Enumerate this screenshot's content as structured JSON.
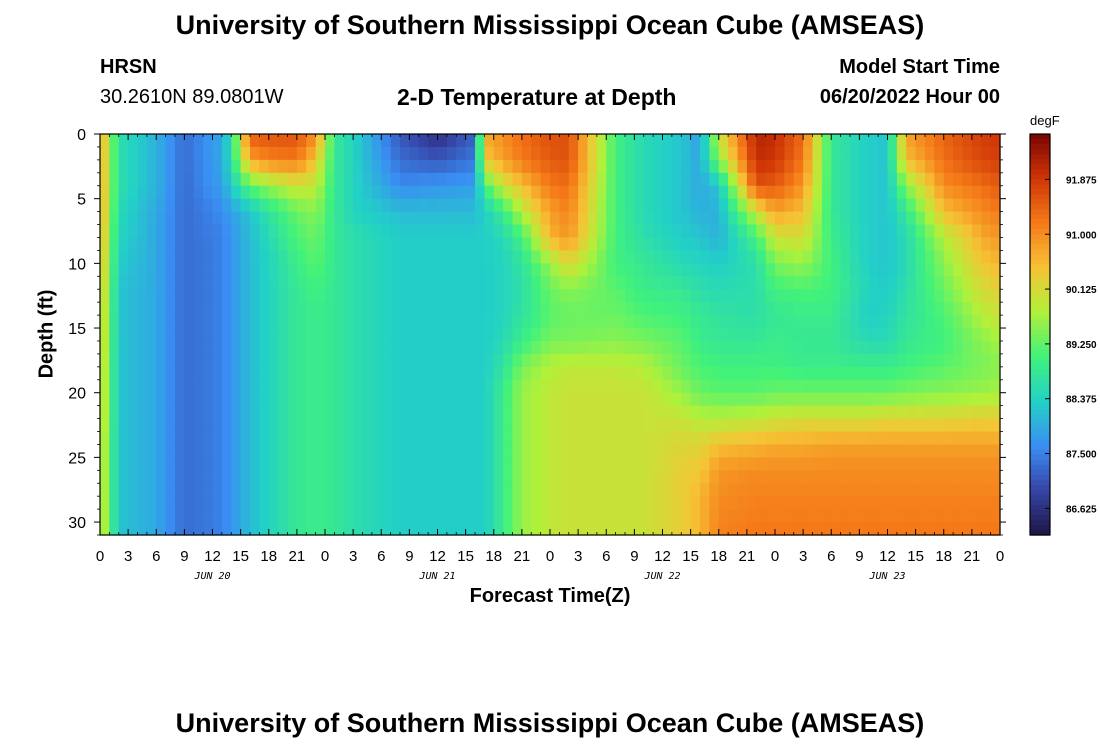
{
  "header": {
    "title": "University of Southern Mississippi Ocean Cube (AMSEAS)",
    "station": "HRSN",
    "coords": "30.2610N  89.0801W",
    "plot_title": "2-D Temperature at Depth",
    "model_label": "Model Start Time",
    "model_time": "06/20/2022 Hour 00"
  },
  "footer": {
    "title": "University of Southern Mississippi Ocean Cube (AMSEAS)"
  },
  "chart_data": {
    "type": "heatmap",
    "title": "2-D Temperature at Depth",
    "xlabel": "Forecast Time(Z)",
    "ylabel": "Depth (ft)",
    "xlim": [
      0,
      96
    ],
    "ylim": [
      0,
      31
    ],
    "x_ticks": [
      "0",
      "3",
      "6",
      "9",
      "12",
      "15",
      "18",
      "21",
      "0",
      "3",
      "6",
      "9",
      "12",
      "15",
      "18",
      "21",
      "0",
      "3",
      "6",
      "9",
      "12",
      "15",
      "18",
      "21",
      "0",
      "3",
      "6",
      "9",
      "12",
      "15",
      "18",
      "21",
      "0"
    ],
    "date_labels": [
      "JUN 20",
      "JUN 21",
      "JUN 22",
      "JUN 23"
    ],
    "y_ticks": [
      "0",
      "5",
      "10",
      "15",
      "20",
      "25",
      "30"
    ],
    "colorbar": {
      "unit": "degF",
      "ticks": [
        "91.875",
        "91.000",
        "90.125",
        "89.250",
        "88.375",
        "87.500",
        "86.625"
      ],
      "range": [
        86.2,
        92.6
      ],
      "colors": [
        "#1d1646",
        "#3644a5",
        "#3a8ef4",
        "#22d1c6",
        "#42f27a",
        "#b0f13a",
        "#f6c335",
        "#f57a19",
        "#cf3506",
        "#7a0403"
      ]
    },
    "depths_ft": [
      0,
      2,
      4,
      6,
      8,
      10,
      12,
      14,
      16,
      18,
      20,
      22,
      24,
      26,
      28,
      31
    ],
    "keyframes_hours": [
      0,
      2,
      6,
      9,
      13,
      14,
      16,
      18,
      21,
      23,
      25,
      27,
      32,
      36,
      40,
      41,
      43,
      45,
      48,
      50,
      55,
      58,
      62,
      64,
      66,
      70,
      72,
      75,
      78,
      82,
      84,
      86,
      90,
      94,
      96
    ],
    "profiles_degF": [
      [
        90.8,
        90.8,
        90.8,
        90.8,
        90.7,
        90.6,
        90.5,
        90.4,
        90.4,
        90.3,
        90.3,
        90.3,
        90.2,
        90.2,
        90.2,
        90.2
      ],
      [
        88.6,
        88.6,
        88.6,
        88.5,
        88.4,
        88.3,
        88.2,
        88.2,
        88.2,
        88.2,
        88.2,
        88.2,
        88.2,
        88.2,
        88.2,
        88.2
      ],
      [
        88.0,
        88.0,
        88.0,
        87.9,
        87.9,
        87.9,
        87.9,
        87.9,
        87.9,
        87.9,
        87.9,
        87.9,
        87.9,
        87.9,
        87.9,
        87.9
      ],
      [
        87.3,
        87.3,
        87.3,
        87.3,
        87.3,
        87.3,
        87.3,
        87.3,
        87.3,
        87.3,
        87.3,
        87.3,
        87.3,
        87.3,
        87.3,
        87.3
      ],
      [
        87.9,
        87.9,
        87.8,
        87.6,
        87.5,
        87.5,
        87.5,
        87.5,
        87.5,
        87.5,
        87.5,
        87.5,
        87.5,
        87.5,
        87.5,
        87.5
      ],
      [
        88.6,
        88.6,
        88.3,
        87.8,
        87.7,
        87.7,
        87.7,
        87.7,
        87.7,
        87.7,
        87.7,
        87.7,
        87.7,
        87.7,
        87.7,
        87.7
      ],
      [
        91.5,
        90.8,
        89.2,
        88.2,
        88.1,
        88.1,
        88.1,
        88.1,
        88.1,
        88.1,
        88.1,
        88.1,
        88.1,
        88.1,
        88.1,
        88.1
      ],
      [
        91.6,
        91.1,
        89.6,
        88.7,
        88.5,
        88.4,
        88.4,
        88.4,
        88.4,
        88.4,
        88.4,
        88.4,
        88.4,
        88.4,
        88.4,
        88.4
      ],
      [
        91.6,
        91.2,
        90.0,
        89.3,
        89.1,
        88.9,
        88.8,
        88.8,
        88.8,
        88.8,
        88.8,
        88.8,
        88.8,
        88.8,
        88.8,
        88.8
      ],
      [
        91.0,
        90.4,
        89.9,
        89.5,
        89.3,
        89.2,
        89.0,
        88.9,
        88.9,
        88.9,
        88.9,
        88.9,
        88.9,
        88.9,
        88.9,
        88.9
      ],
      [
        88.8,
        88.8,
        88.8,
        88.8,
        88.8,
        88.8,
        88.8,
        88.8,
        88.8,
        88.8,
        88.8,
        88.8,
        88.8,
        88.8,
        88.8,
        88.8
      ],
      [
        88.4,
        88.4,
        88.4,
        88.4,
        88.6,
        88.6,
        88.6,
        88.6,
        88.6,
        88.6,
        88.6,
        88.6,
        88.6,
        88.6,
        88.6,
        88.6
      ],
      [
        87.1,
        87.3,
        87.6,
        88.1,
        88.3,
        88.3,
        88.3,
        88.3,
        88.3,
        88.3,
        88.3,
        88.3,
        88.3,
        88.3,
        88.3,
        88.3
      ],
      [
        86.6,
        87.1,
        87.7,
        88.1,
        88.3,
        88.3,
        88.3,
        88.3,
        88.3,
        88.3,
        88.3,
        88.3,
        88.3,
        88.3,
        88.3,
        88.3
      ],
      [
        87.2,
        87.4,
        87.8,
        88.1,
        88.3,
        88.3,
        88.3,
        88.3,
        88.3,
        88.3,
        88.3,
        88.3,
        88.3,
        88.3,
        88.3,
        88.3
      ],
      [
        90.7,
        90.4,
        89.0,
        88.3,
        88.3,
        88.3,
        88.3,
        88.3,
        88.3,
        88.3,
        88.3,
        88.3,
        88.3,
        88.3,
        88.3,
        88.3
      ],
      [
        91.0,
        90.8,
        90.0,
        88.9,
        88.5,
        88.4,
        88.4,
        88.4,
        88.5,
        88.7,
        88.9,
        88.9,
        88.9,
        88.9,
        88.9,
        88.9
      ],
      [
        91.3,
        91.2,
        90.5,
        89.8,
        89.0,
        88.7,
        88.6,
        88.7,
        88.9,
        89.4,
        89.6,
        89.6,
        89.6,
        89.6,
        89.6,
        89.6
      ],
      [
        91.6,
        91.5,
        91.2,
        90.8,
        90.6,
        89.6,
        89.3,
        89.2,
        89.4,
        89.8,
        89.9,
        89.9,
        89.9,
        89.9,
        89.9,
        89.9
      ],
      [
        91.6,
        91.6,
        91.3,
        91.1,
        90.9,
        90.2,
        89.5,
        89.3,
        89.4,
        89.9,
        90.0,
        90.0,
        90.0,
        90.0,
        90.0,
        90.0
      ],
      [
        89.0,
        89.0,
        89.0,
        89.0,
        89.0,
        89.0,
        89.2,
        89.3,
        89.5,
        89.9,
        90.0,
        90.0,
        90.0,
        90.0,
        90.0,
        90.0
      ],
      [
        88.5,
        88.5,
        88.5,
        88.5,
        88.6,
        88.8,
        88.9,
        89.1,
        89.4,
        89.8,
        90.0,
        90.0,
        90.0,
        90.0,
        90.0,
        90.0
      ],
      [
        88.2,
        88.2,
        88.2,
        88.2,
        88.3,
        88.5,
        88.8,
        89.0,
        89.2,
        89.3,
        89.6,
        90.0,
        90.2,
        90.3,
        90.3,
        90.3
      ],
      [
        87.8,
        87.9,
        87.9,
        88.0,
        88.2,
        88.4,
        88.6,
        88.8,
        88.9,
        89.1,
        89.3,
        89.8,
        90.2,
        90.4,
        90.6,
        90.6
      ],
      [
        90.0,
        89.5,
        88.2,
        88.0,
        88.0,
        88.3,
        88.5,
        88.7,
        88.8,
        89.0,
        89.2,
        89.8,
        90.5,
        90.9,
        91.0,
        91.1
      ],
      [
        92.1,
        92.0,
        91.6,
        90.0,
        89.0,
        88.6,
        88.6,
        88.6,
        88.8,
        89.0,
        89.2,
        89.9,
        90.6,
        91.0,
        91.1,
        91.2
      ],
      [
        92.0,
        91.9,
        91.5,
        90.8,
        90.0,
        89.4,
        89.0,
        88.8,
        88.9,
        89.0,
        89.3,
        90.0,
        90.7,
        91.0,
        91.1,
        91.2
      ],
      [
        91.3,
        91.2,
        90.9,
        90.5,
        90.1,
        89.6,
        89.1,
        88.9,
        88.8,
        88.9,
        89.3,
        90.1,
        90.7,
        91.0,
        91.1,
        91.2
      ],
      [
        88.8,
        88.8,
        88.8,
        88.8,
        88.9,
        89.0,
        89.0,
        88.9,
        88.8,
        88.9,
        89.3,
        90.1,
        90.8,
        91.0,
        91.1,
        91.2
      ],
      [
        88.3,
        88.3,
        88.3,
        88.3,
        88.3,
        88.3,
        88.4,
        88.3,
        88.5,
        88.9,
        89.3,
        90.1,
        90.8,
        91.0,
        91.1,
        91.2
      ],
      [
        88.2,
        88.2,
        88.2,
        88.2,
        88.2,
        88.2,
        88.3,
        88.4,
        88.5,
        88.9,
        89.3,
        90.2,
        90.8,
        91.0,
        91.1,
        91.2
      ],
      [
        90.8,
        90.5,
        89.5,
        88.8,
        88.5,
        88.5,
        88.6,
        88.7,
        88.8,
        89.0,
        89.4,
        90.2,
        90.8,
        91.0,
        91.1,
        91.2
      ],
      [
        91.4,
        91.3,
        91.0,
        90.5,
        89.8,
        89.5,
        89.3,
        89.1,
        89.0,
        89.2,
        89.5,
        90.2,
        90.8,
        91.0,
        91.1,
        91.2
      ],
      [
        91.8,
        91.7,
        91.3,
        91.0,
        90.7,
        90.4,
        90.1,
        89.8,
        89.5,
        89.4,
        89.6,
        90.3,
        90.8,
        91.0,
        91.1,
        91.2
      ],
      [
        91.9,
        91.8,
        91.5,
        91.2,
        90.9,
        90.6,
        90.3,
        90.0,
        89.7,
        89.5,
        89.7,
        90.3,
        90.8,
        91.0,
        91.1,
        91.2
      ]
    ]
  }
}
